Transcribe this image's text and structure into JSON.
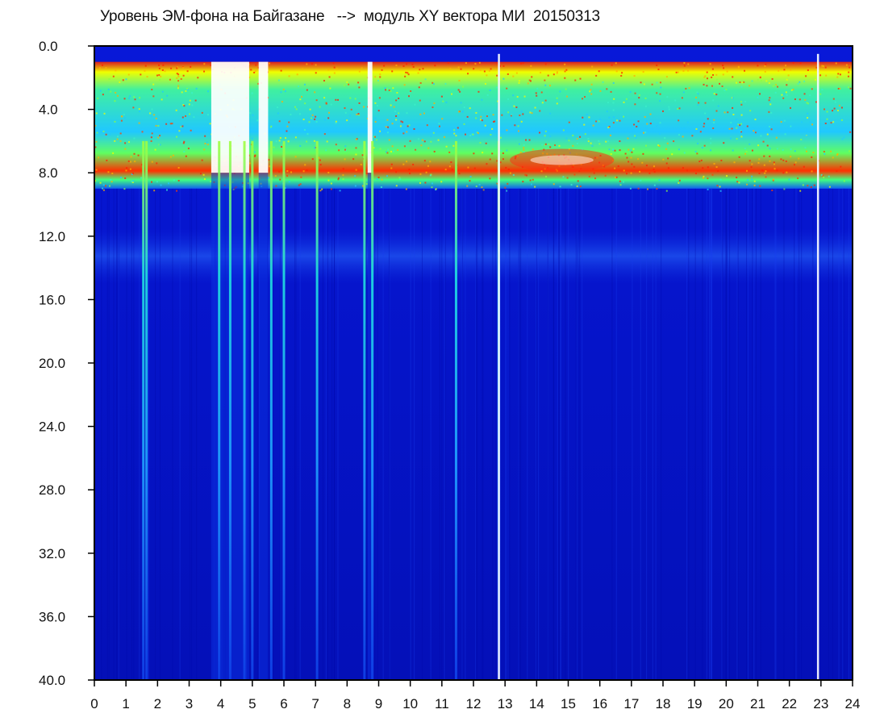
{
  "chart_data": {
    "type": "heatmap",
    "title": "Уровень ЭМ-фона на Байгазане   -->  модуль XY вектора МИ  20150313",
    "xlabel": "",
    "ylabel": "",
    "xlim": [
      0,
      24
    ],
    "ylim": [
      0,
      40
    ],
    "y_inverted": true,
    "x_ticks": [
      "0",
      "1",
      "2",
      "3",
      "4",
      "5",
      "6",
      "7",
      "8",
      "9",
      "10",
      "11",
      "12",
      "13",
      "14",
      "15",
      "16",
      "17",
      "18",
      "19",
      "20",
      "21",
      "22",
      "23",
      "24"
    ],
    "y_ticks": [
      "0.0",
      "4.0",
      "8.0",
      "12.0",
      "16.0",
      "20.0",
      "24.0",
      "28.0",
      "32.0",
      "36.0",
      "40.0"
    ],
    "colorscale": [
      "#0000cc",
      "#0a2fd8",
      "#1e6bf0",
      "#20c8ff",
      "#3cf0c8",
      "#8cff40",
      "#f0ff00",
      "#ffb000",
      "#ff2000",
      "#ffffff"
    ],
    "background_level_y": 9.0,
    "noise_band": {
      "top_y": 1.0,
      "hot_y": 7.5,
      "bottom_y": 8.5
    },
    "secondary_band": {
      "top_y": 11.5,
      "bottom_y": 15.0
    },
    "gaps": [
      {
        "x_start": 3.7,
        "x_end": 4.9
      },
      {
        "x_start": 5.2,
        "x_end": 5.5
      },
      {
        "x_start": 8.65,
        "x_end": 8.8
      }
    ],
    "spikes": [
      {
        "x": 1.55,
        "depth_y": 40
      },
      {
        "x": 1.65,
        "depth_y": 40
      },
      {
        "x": 3.95,
        "depth_y": 40
      },
      {
        "x": 4.3,
        "depth_y": 40
      },
      {
        "x": 4.75,
        "depth_y": 40
      },
      {
        "x": 5.0,
        "depth_y": 40
      },
      {
        "x": 5.6,
        "depth_y": 40
      },
      {
        "x": 6.0,
        "depth_y": 40
      },
      {
        "x": 7.05,
        "depth_y": 40
      },
      {
        "x": 8.55,
        "depth_y": 40
      },
      {
        "x": 8.8,
        "depth_y": 40
      },
      {
        "x": 11.45,
        "depth_y": 40
      },
      {
        "x": 12.8,
        "depth_y": 40
      }
    ],
    "white_lines": [
      {
        "x": 22.9
      },
      {
        "x": 12.8
      }
    ]
  }
}
